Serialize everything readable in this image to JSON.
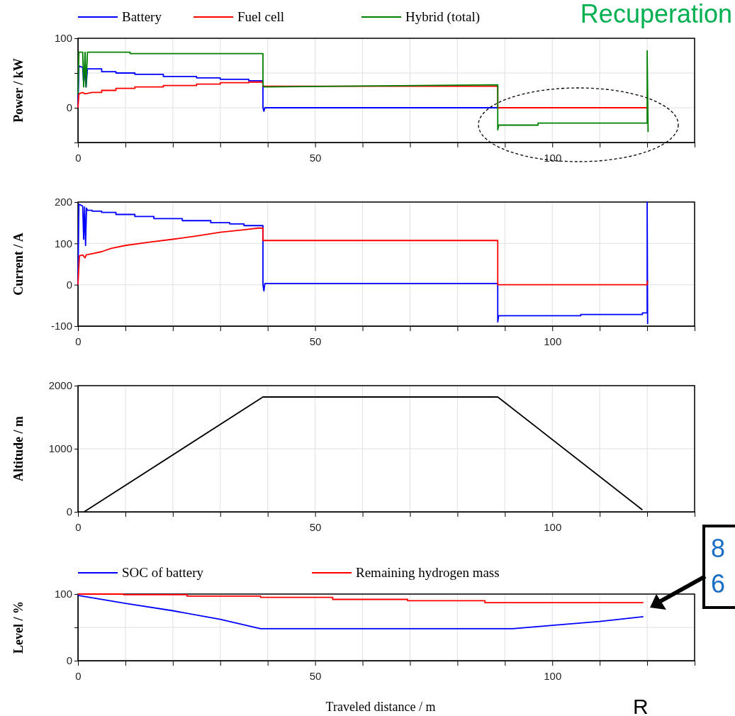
{
  "chart_data": [
    {
      "type": "line",
      "ylabel": "Power / kW",
      "xlim": [
        0,
        130
      ],
      "ylim": [
        -50,
        100
      ],
      "xticks": [
        0,
        {
          "value": 10,
          "label": null
        },
        {
          "value": 20,
          "label": null
        },
        {
          "value": 30,
          "label": null
        },
        {
          "value": 40,
          "label": null
        },
        50,
        {
          "value": 60,
          "label": null
        },
        {
          "value": 70,
          "label": null
        },
        {
          "value": 80,
          "label": null
        },
        {
          "value": 90,
          "label": null
        },
        100,
        {
          "value": 110,
          "label": null
        },
        {
          "value": 120,
          "label": null
        },
        {
          "value": 130,
          "label": null
        }
      ],
      "yticks": [
        0,
        {
          "value": 50,
          "label": null
        },
        100
      ],
      "grid": true,
      "legend": "top",
      "series": [
        {
          "name": "Battery",
          "color": "#0000ff",
          "x": [
            0,
            0.2,
            1,
            1.2,
            1.5,
            1.7,
            2,
            5,
            5,
            8,
            8,
            12,
            12,
            18,
            18,
            25,
            25,
            30,
            30,
            36,
            36,
            39,
            39,
            39.2,
            39.4,
            120
          ],
          "values": [
            0,
            60,
            58,
            35,
            55,
            30,
            56,
            56,
            52,
            52,
            50,
            50,
            48,
            48,
            45,
            45,
            43,
            43,
            41,
            41,
            39,
            39,
            0,
            -5,
            0,
            0
          ]
        },
        {
          "name": "Fuel cell",
          "color": "#ff0000",
          "x": [
            0,
            0.2,
            1,
            1.5,
            3,
            5,
            5,
            8,
            8,
            12,
            12,
            18,
            18,
            25,
            25,
            30,
            30,
            36,
            36,
            39,
            39,
            88.5,
            88.5,
            120
          ],
          "values": [
            0,
            20,
            22,
            20,
            22,
            22,
            25,
            25,
            28,
            28,
            30,
            30,
            32,
            32,
            34,
            34,
            36,
            36,
            37,
            37,
            31,
            31,
            0,
            0
          ]
        },
        {
          "name": "Hybrid (total)",
          "color": "#008000",
          "x": [
            0,
            0.2,
            1,
            1.2,
            1.5,
            1.7,
            2,
            11,
            11,
            39,
            39,
            39.2,
            88.5,
            88.5,
            88.7,
            97,
            97,
            120,
            120,
            120.2
          ],
          "values": [
            20,
            80,
            80,
            30,
            80,
            30,
            80,
            80,
            78,
            78,
            33,
            30,
            33,
            -32,
            -25,
            -25,
            -22,
            -22,
            82,
            -35
          ]
        }
      ],
      "annotations": [
        "Recuperation"
      ]
    },
    {
      "type": "line",
      "ylabel": "Current / A",
      "xlim": [
        0,
        130
      ],
      "ylim": [
        -100,
        200
      ],
      "xticks": [
        0,
        {
          "value": 10,
          "label": null
        },
        {
          "value": 20,
          "label": null
        },
        {
          "value": 30,
          "label": null
        },
        {
          "value": 40,
          "label": null
        },
        50,
        {
          "value": 60,
          "label": null
        },
        {
          "value": 70,
          "label": null
        },
        {
          "value": 80,
          "label": null
        },
        {
          "value": 90,
          "label": null
        },
        100,
        {
          "value": 110,
          "label": null
        },
        {
          "value": 120,
          "label": null
        },
        {
          "value": 130,
          "label": null
        }
      ],
      "yticks": [
        -100,
        0,
        100,
        200
      ],
      "grid": true,
      "series": [
        {
          "color": "#0000ff",
          "x": [
            0,
            0.2,
            1,
            1.2,
            1.4,
            1.6,
            1.8,
            2,
            3,
            3,
            5,
            5,
            8,
            8,
            12,
            12,
            16,
            16,
            22,
            22,
            28,
            28,
            32,
            32,
            35,
            35,
            39,
            39,
            39.2,
            39.4,
            88.5,
            88.5,
            88.7,
            91,
            106,
            106,
            119,
            119,
            120,
            120,
            120.1
          ],
          "values": [
            0,
            195,
            190,
            110,
            188,
            95,
            185,
            180,
            180,
            178,
            178,
            175,
            175,
            170,
            170,
            165,
            165,
            160,
            160,
            155,
            155,
            150,
            150,
            147,
            147,
            143,
            143,
            0,
            -15,
            3,
            3,
            -90,
            -75,
            -75,
            -75,
            -72,
            -72,
            -68,
            -68,
            200,
            -95
          ]
        },
        {
          "color": "#ff0000",
          "x": [
            0,
            0.3,
            1,
            1.5,
            1.7,
            3,
            5,
            7,
            10,
            15,
            20,
            25,
            30,
            35,
            38,
            39,
            39,
            88.5,
            88.5,
            120,
            120.1
          ],
          "values": [
            0,
            70,
            72,
            65,
            72,
            75,
            80,
            88,
            95,
            103,
            110,
            118,
            127,
            133,
            137,
            137,
            107,
            107,
            0,
            0,
            10
          ]
        }
      ]
    },
    {
      "type": "line",
      "ylabel": "Altitude / m",
      "xlim": [
        0,
        130
      ],
      "ylim": [
        0,
        2000
      ],
      "xticks": [
        0,
        {
          "value": 10,
          "label": null
        },
        {
          "value": 20,
          "label": null
        },
        {
          "value": 30,
          "label": null
        },
        {
          "value": 40,
          "label": null
        },
        50,
        {
          "value": 60,
          "label": null
        },
        {
          "value": 70,
          "label": null
        },
        {
          "value": 80,
          "label": null
        },
        {
          "value": 90,
          "label": null
        },
        100,
        {
          "value": 110,
          "label": null
        },
        {
          "value": 120,
          "label": null
        },
        {
          "value": 130,
          "label": null
        }
      ],
      "yticks": [
        0,
        1000,
        2000
      ],
      "grid": true,
      "series": [
        {
          "color": "#000000",
          "x": [
            1.3,
            39,
            88.5,
            119
          ],
          "values": [
            0,
            1820,
            1820,
            30
          ]
        }
      ]
    },
    {
      "type": "line",
      "ylabel": "Level / %",
      "xlabel": "Traveled distance / m",
      "xlim": [
        0,
        130
      ],
      "ylim": [
        0,
        100
      ],
      "xticks": [
        0,
        {
          "value": 10,
          "label": null
        },
        {
          "value": 20,
          "label": null
        },
        {
          "value": 30,
          "label": null
        },
        {
          "value": 40,
          "label": null
        },
        50,
        {
          "value": 60,
          "label": null
        },
        {
          "value": 70,
          "label": null
        },
        {
          "value": 80,
          "label": null
        },
        {
          "value": 90,
          "label": null
        },
        100,
        {
          "value": 110,
          "label": null
        },
        {
          "value": 120,
          "label": null
        },
        {
          "value": 130,
          "label": null
        }
      ],
      "yticks": [
        0,
        {
          "value": 50,
          "label": null
        },
        100
      ],
      "grid": true,
      "legend": "top",
      "series": [
        {
          "name": "SOC of battery",
          "color": "#0000ff",
          "x": [
            0,
            10,
            20,
            30,
            38.5,
            91.7,
            100,
            110,
            119.2
          ],
          "values": [
            98,
            86,
            75,
            62,
            48,
            48,
            53,
            59,
            66
          ]
        },
        {
          "name": "Remaining hydrogen mass",
          "type": "step",
          "color": "#ff0000",
          "x": [
            0,
            9.6,
            23,
            38.5,
            53.7,
            69.5,
            85.8,
            119.2
          ],
          "values": [
            100,
            99,
            97,
            95,
            92,
            90,
            87,
            87
          ]
        }
      ],
      "annotations": [
        "8",
        "6",
        "R"
      ]
    }
  ]
}
